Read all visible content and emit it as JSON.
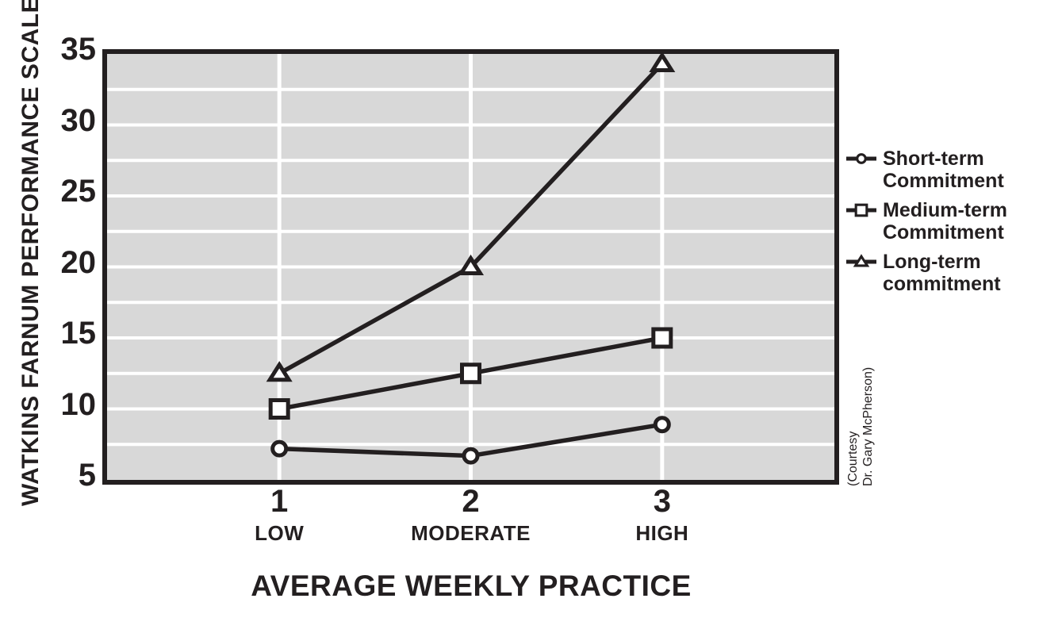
{
  "chart_data": {
    "type": "line",
    "title": "",
    "xlabel": "AVERAGE WEEKLY PRACTICE",
    "ylabel": "WATKINS FARNUM PERFORMANCE SCALE",
    "x": [
      1,
      2,
      3
    ],
    "x_tick_labels": [
      "1",
      "2",
      "3"
    ],
    "categories": [
      "LOW",
      "MODERATE",
      "HIGH"
    ],
    "xlim": [
      0.1,
      3.9
    ],
    "ylim": [
      5,
      35
    ],
    "y_ticks": [
      5,
      10,
      15,
      20,
      25,
      30,
      35
    ],
    "y_gridline_step": 2.5,
    "grid": "white gridlines on gray band background, horizontal every 2.5 units, vertical at each x category",
    "legend_position": "right",
    "series": [
      {
        "name": "Short-term Commitment",
        "label": "Short-term\nCommitment",
        "marker": "circle",
        "values": [
          7.2,
          6.7,
          8.9
        ]
      },
      {
        "name": "Medium-term Commitment",
        "label": "Medium-term\nCommitment",
        "marker": "square",
        "values": [
          10,
          12.5,
          15
        ]
      },
      {
        "name": "Long-term commitment",
        "label": "Long-term\ncommitment",
        "marker": "triangle",
        "values": [
          12.5,
          20,
          34.3
        ]
      }
    ],
    "annotation": "(Courtesy\nDr. Gary McPherson)",
    "colors": {
      "ink": "#231f20",
      "plot_background": "#d8d8d8",
      "gridline": "#ffffff",
      "page_background": "#ffffff",
      "marker_fill": "#ffffff"
    }
  }
}
